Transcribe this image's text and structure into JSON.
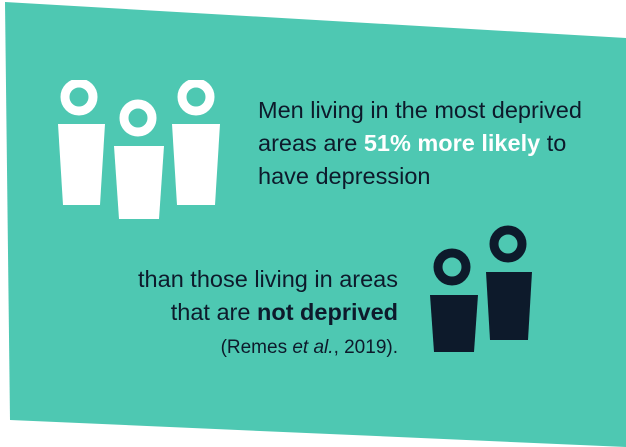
{
  "colors": {
    "background": "#4ec8b2",
    "dark": "#0d1a2b",
    "light": "#ffffff"
  },
  "statement": {
    "part1_prefix": "Men living in the most deprived areas are ",
    "part1_highlight": "51% more likely",
    "part1_suffix": " to have depression",
    "part2_prefix": "than those living in areas that are ",
    "part2_bold": "not deprived",
    "citation_open": "(Remes ",
    "citation_etal": "et al.",
    "citation_close": ", 2019).",
    "citation_period": "."
  },
  "icons": {
    "group_white": "three-people-icon",
    "group_dark": "two-people-icon"
  }
}
